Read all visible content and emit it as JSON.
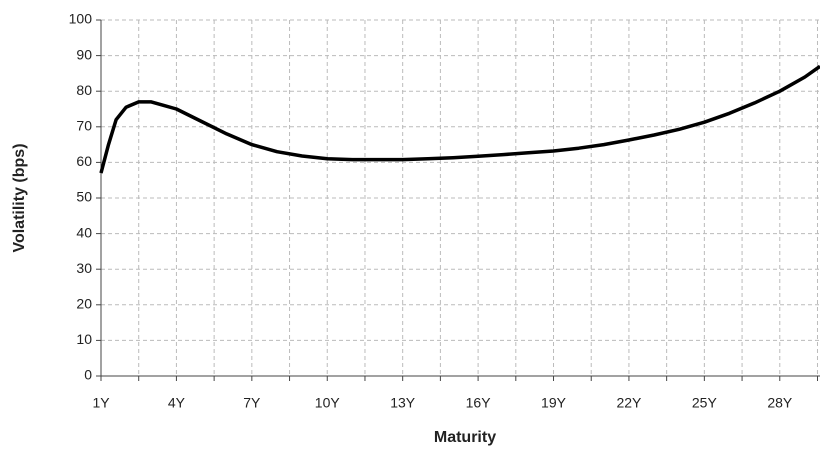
{
  "chart_data": {
    "type": "line",
    "x_label": "Maturity",
    "y_label": "Volatility (bps)",
    "x": [
      1,
      1.3,
      1.6,
      2,
      2.5,
      3,
      3.5,
      4,
      5,
      6,
      7,
      8,
      9,
      10,
      11,
      12,
      13,
      14,
      15,
      16,
      17,
      18,
      19,
      20,
      21,
      22,
      23,
      24,
      25,
      26,
      27,
      28,
      29,
      29.6
    ],
    "series": [
      {
        "name": "Volatility",
        "color": "#000000",
        "values": [
          57,
          65,
          72,
          75.5,
          77,
          77,
          76,
          75,
          71.5,
          68,
          65,
          63,
          61.8,
          61,
          60.8,
          60.8,
          60.8,
          61,
          61.3,
          61.7,
          62.2,
          62.7,
          63.2,
          64,
          65,
          66.3,
          67.7,
          69.3,
          71.3,
          73.8,
          76.7,
          80,
          84,
          87
        ]
      }
    ],
    "xlim": [
      1,
      29.6
    ],
    "xticks": [
      {
        "value": 1,
        "label": "1Y"
      },
      {
        "value": 2.5,
        "label": null
      },
      {
        "value": 4,
        "label": "4Y"
      },
      {
        "value": 5.5,
        "label": null
      },
      {
        "value": 7,
        "label": "7Y"
      },
      {
        "value": 8.5,
        "label": null
      },
      {
        "value": 10,
        "label": "10Y"
      },
      {
        "value": 11.5,
        "label": null
      },
      {
        "value": 13,
        "label": "13Y"
      },
      {
        "value": 14.5,
        "label": null
      },
      {
        "value": 16,
        "label": "16Y"
      },
      {
        "value": 17.5,
        "label": null
      },
      {
        "value": 19,
        "label": "19Y"
      },
      {
        "value": 20.5,
        "label": null
      },
      {
        "value": 22,
        "label": "22Y"
      },
      {
        "value": 23.5,
        "label": null
      },
      {
        "value": 25,
        "label": "25Y"
      },
      {
        "value": 26.5,
        "label": null
      },
      {
        "value": 28,
        "label": "28Y"
      },
      {
        "value": 29.5,
        "label": null
      }
    ],
    "ylim": [
      0,
      100
    ],
    "yticks": [
      0,
      10,
      20,
      30,
      40,
      50,
      60,
      70,
      80,
      90,
      100
    ],
    "grid": true
  }
}
